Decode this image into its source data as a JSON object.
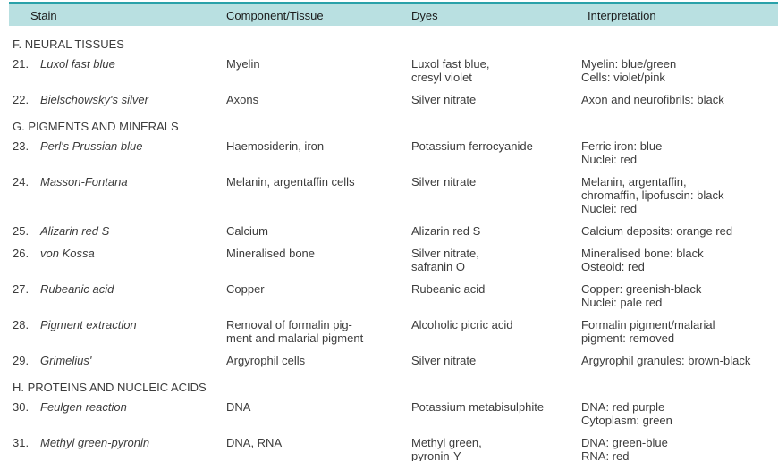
{
  "table": {
    "colors": {
      "top_rule": "#2aa1a9",
      "header_band": "#b9e0e1",
      "bottom_rule": "#3fb3bd",
      "text": "#3c3c3c"
    },
    "headers": [
      "Stain",
      "Component/Tissue",
      "Dyes",
      "Interpretation"
    ],
    "rows": [
      {
        "type": "section",
        "label": "F. NEURAL TISSUES"
      },
      {
        "type": "stain",
        "num": "21.",
        "name": "Luxol fast blue",
        "component": "Myelin",
        "dyes": "Luxol fast blue,\ncresyl violet",
        "interpretation": "Myelin: blue/green\nCells: violet/pink"
      },
      {
        "type": "stain",
        "num": "22.",
        "name": "Bielschowsky's silver",
        "component": "Axons",
        "dyes": "Silver nitrate",
        "interpretation": "Axon and neurofibrils: black"
      },
      {
        "type": "section",
        "label": "G. PIGMENTS AND MINERALS"
      },
      {
        "type": "stain",
        "num": "23.",
        "name": "Perl's Prussian blue",
        "component": "Haemosiderin, iron",
        "dyes": "Potassium ferrocyanide",
        "interpretation": "Ferric iron: blue\nNuclei: red"
      },
      {
        "type": "stain",
        "num": "24.",
        "name": "Masson-Fontana",
        "component": "Melanin, argentaffin cells",
        "dyes": "Silver nitrate",
        "interpretation": "Melanin, argentaffin,\nchromaffin, lipofuscin: black\nNuclei: red"
      },
      {
        "type": "stain",
        "num": "25.",
        "name": "Alizarin red S",
        "component": "Calcium",
        "dyes": "Alizarin red S",
        "interpretation": "Calcium deposits: orange red"
      },
      {
        "type": "stain",
        "num": "26.",
        "name": "von Kossa",
        "component": "Mineralised bone",
        "dyes": "Silver nitrate,\nsafranin O",
        "interpretation": "Mineralised bone: black\nOsteoid: red"
      },
      {
        "type": "stain",
        "num": "27.",
        "name": "Rubeanic acid",
        "component": "Copper",
        "dyes": "Rubeanic acid",
        "interpretation": "Copper: greenish-black\nNuclei: pale red"
      },
      {
        "type": "stain",
        "num": "28.",
        "name": "Pigment extraction",
        "component": "Removal of formalin pig-\nment and malarial pigment",
        "dyes": "Alcoholic picric acid",
        "interpretation": "Formalin pigment/malarial\npigment: removed"
      },
      {
        "type": "stain",
        "num": "29.",
        "name": "Grimelius'",
        "component": "Argyrophil cells",
        "dyes": "Silver nitrate",
        "interpretation": "Argyrophil granules: brown-black"
      },
      {
        "type": "section",
        "label": "H. PROTEINS AND NUCLEIC ACIDS"
      },
      {
        "type": "stain",
        "num": "30.",
        "name": "Feulgen reaction",
        "component": "DNA",
        "dyes": "Potassium metabisulphite",
        "interpretation": "DNA: red purple\nCytoplasm: green"
      },
      {
        "type": "stain",
        "num": "31.",
        "name": "Methyl green-pyronin",
        "component": "DNA, RNA",
        "dyes": "Methyl green,\npyronin-Y",
        "interpretation": "DNA: green-blue\nRNA: red"
      }
    ]
  }
}
